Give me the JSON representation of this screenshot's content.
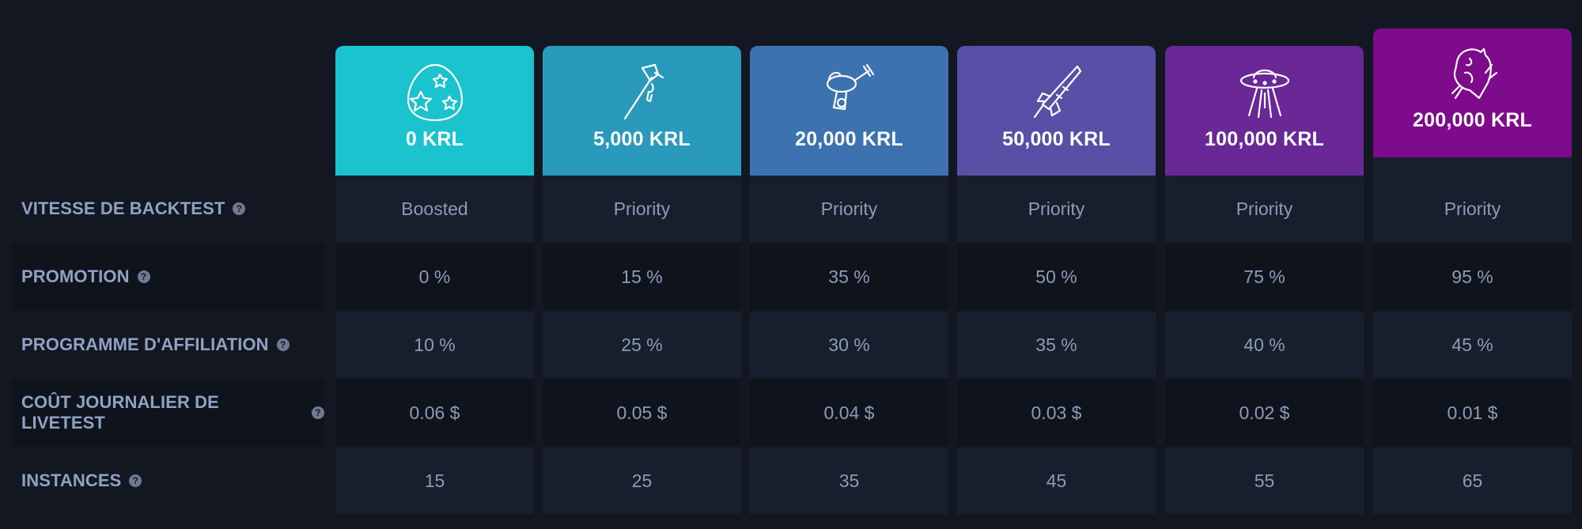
{
  "tiers": [
    {
      "price": "0 KRL",
      "icon": "egg-icon",
      "color": "#1ac3cd"
    },
    {
      "price": "5,000 KRL",
      "icon": "axe-icon",
      "color": "#299abc"
    },
    {
      "price": "20,000 KRL",
      "icon": "raygun-icon",
      "color": "#3d72b0"
    },
    {
      "price": "50,000 KRL",
      "icon": "rocket-icon",
      "color": "#5750a6"
    },
    {
      "price": "100,000 KRL",
      "icon": "ufo-icon",
      "color": "#692896"
    },
    {
      "price": "200,000 KRL",
      "icon": "alien-creature-icon",
      "color": "#7e0a8c"
    }
  ],
  "rows": [
    {
      "label": "VITESSE DE BACKTEST",
      "values": [
        "Boosted",
        "Priority",
        "Priority",
        "Priority",
        "Priority",
        "Priority"
      ]
    },
    {
      "label": "PROMOTION",
      "values": [
        "0 %",
        "15 %",
        "35 %",
        "50 %",
        "75 %",
        "95 %"
      ]
    },
    {
      "label": "PROGRAMME D'AFFILIATION",
      "values": [
        "10 %",
        "25 %",
        "30 %",
        "35 %",
        "40 %",
        "45 %"
      ]
    },
    {
      "label": "COÛT JOURNALIER DE LIVETEST",
      "values": [
        "0.06 $",
        "0.05 $",
        "0.04 $",
        "0.03 $",
        "0.02 $",
        "0.01 $"
      ]
    },
    {
      "label": "INSTANCES",
      "values": [
        "15",
        "25",
        "35",
        "45",
        "55",
        "65"
      ]
    }
  ],
  "help_glyph": "?"
}
